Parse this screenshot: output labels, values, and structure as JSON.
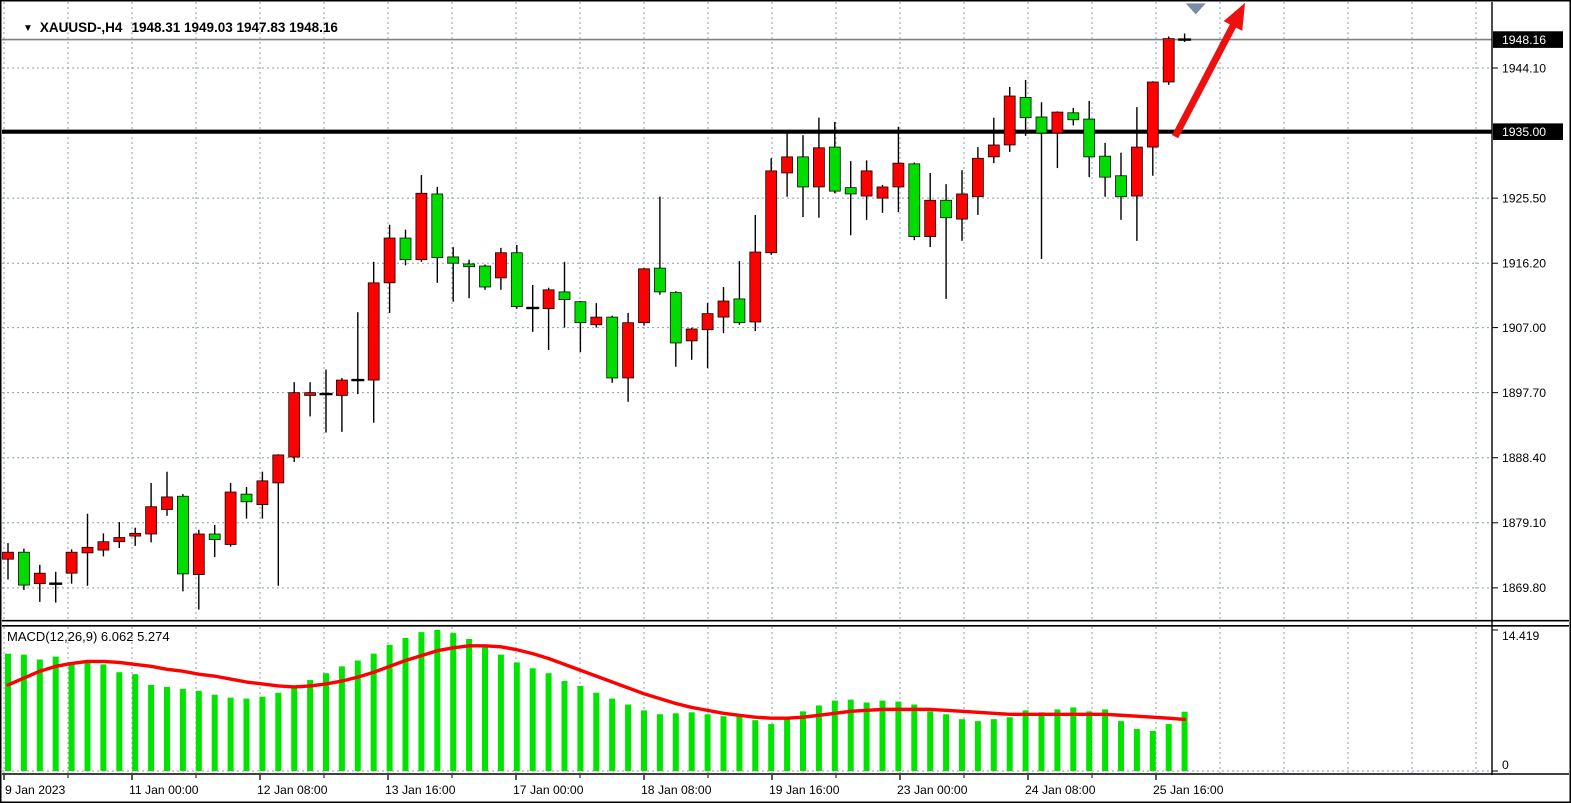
{
  "titlebar": {
    "dropdown_icon": "▼",
    "symbol_period": "XAUUSD-,H4",
    "ohlc": "1948.31 1949.03 1947.83 1948.16"
  },
  "colors": {
    "background": "#FFFFFF",
    "bull_body": "#FE0000",
    "bear_body": "#00DC00",
    "wick": "#000000",
    "grid": "#8B9BB0",
    "level_line": "#000000",
    "current_price_line": "#808080",
    "arrow": "#EE0F0F",
    "triangle_marker": "#7C8CA4",
    "macd_histogram": "#00E400",
    "macd_signal": "#FF0000",
    "tag_bg": "#000000",
    "tag_fg": "#FFFFFF",
    "border": "#000000"
  },
  "chart_data": {
    "type": "candlestick",
    "title": "XAUUSD-,H4",
    "symbol": "XAUUSD-",
    "timeframe": "H4",
    "ohlc_readout": {
      "open": 1948.31,
      "high": 1949.03,
      "low": 1947.83,
      "close": 1948.16
    },
    "price_axis": {
      "ticks": [
        1944.1,
        1925.5,
        1916.2,
        1907.0,
        1897.7,
        1888.4,
        1879.1,
        1869.8
      ],
      "current_price_tag": 1948.16,
      "level_tag": 1935.0
    },
    "x_axis": {
      "labels": [
        "9 Jan 2023",
        "11 Jan 00:00",
        "12 Jan 08:00",
        "13 Jan 16:00",
        "17 Jan 00:00",
        "18 Jan 08:00",
        "19 Jan 16:00",
        "23 Jan 00:00",
        "24 Jan 08:00",
        "25 Jan 16:00"
      ]
    },
    "overlays": {
      "horizontal_level": 1935.0,
      "current_price_line": 1948.16
    },
    "annotations": {
      "trend_arrow": {
        "type": "arrow-up-right",
        "from": {
          "bar": 73.4,
          "price": 1934.3
        },
        "to": {
          "bar": 77.8,
          "price": 1953.4
        }
      },
      "triangle_marker": {
        "type": "triangle-down",
        "bar": 74.7,
        "price": 1953.2
      }
    },
    "candles": [
      [
        1873.9,
        1876.2,
        1871.0,
        1874.9
      ],
      [
        1874.9,
        1875.4,
        1869.5,
        1870.2
      ],
      [
        1870.4,
        1873.1,
        1867.8,
        1871.9
      ],
      [
        1870.3,
        1872.1,
        1867.7,
        1870.4
      ],
      [
        1871.9,
        1875.3,
        1870.4,
        1874.9
      ],
      [
        1874.8,
        1880.4,
        1870.1,
        1875.6
      ],
      [
        1875.2,
        1877.6,
        1874.3,
        1876.4
      ],
      [
        1876.4,
        1879.2,
        1875.5,
        1877.0
      ],
      [
        1877.2,
        1878.4,
        1875.8,
        1877.6
      ],
      [
        1877.5,
        1884.8,
        1876.3,
        1881.4
      ],
      [
        1881.0,
        1886.4,
        1880.1,
        1882.8
      ],
      [
        1882.9,
        1883.2,
        1869.3,
        1871.8
      ],
      [
        1871.7,
        1878.1,
        1866.7,
        1877.5
      ],
      [
        1877.5,
        1878.8,
        1874.2,
        1876.7
      ],
      [
        1876.0,
        1884.8,
        1875.7,
        1883.5
      ],
      [
        1883.2,
        1884.2,
        1879.7,
        1882.1
      ],
      [
        1881.7,
        1886.4,
        1879.7,
        1885.1
      ],
      [
        1884.8,
        1888.9,
        1870.1,
        1888.8
      ],
      [
        1888.5,
        1899.2,
        1887.8,
        1897.7
      ],
      [
        1897.3,
        1899.2,
        1894.3,
        1897.7
      ],
      [
        1897.5,
        1901.0,
        1892.0,
        1897.5
      ],
      [
        1897.3,
        1899.8,
        1892.1,
        1899.5
      ],
      [
        1899.5,
        1909.2,
        1897.5,
        1899.5
      ],
      [
        1899.5,
        1916.4,
        1893.4,
        1913.4
      ],
      [
        1913.4,
        1921.7,
        1909.1,
        1919.8
      ],
      [
        1919.8,
        1921.0,
        1915.9,
        1916.7
      ],
      [
        1916.7,
        1928.8,
        1916.4,
        1926.2
      ],
      [
        1926.1,
        1927.1,
        1913.4,
        1917.0
      ],
      [
        1917.1,
        1918.5,
        1910.7,
        1916.2
      ],
      [
        1916.1,
        1916.7,
        1911.2,
        1915.7
      ],
      [
        1915.8,
        1916.0,
        1912.4,
        1912.8
      ],
      [
        1914.1,
        1918.4,
        1912.4,
        1917.7
      ],
      [
        1917.7,
        1918.8,
        1909.7,
        1910.0
      ],
      [
        1909.8,
        1913.1,
        1906.4,
        1909.8
      ],
      [
        1909.7,
        1912.7,
        1903.8,
        1912.4
      ],
      [
        1912.1,
        1916.4,
        1907.0,
        1911.0
      ],
      [
        1910.7,
        1910.8,
        1903.5,
        1907.7
      ],
      [
        1907.4,
        1910.5,
        1907.0,
        1908.5
      ],
      [
        1908.5,
        1908.7,
        1899.1,
        1899.8
      ],
      [
        1899.8,
        1909.1,
        1896.4,
        1907.7
      ],
      [
        1907.7,
        1915.5,
        1907.3,
        1915.4
      ],
      [
        1915.5,
        1925.7,
        1911.7,
        1912.1
      ],
      [
        1912.0,
        1912.2,
        1901.4,
        1904.8
      ],
      [
        1905.1,
        1907.0,
        1902.4,
        1906.8
      ],
      [
        1906.7,
        1910.5,
        1901.2,
        1909.0
      ],
      [
        1908.5,
        1912.8,
        1906.2,
        1910.8
      ],
      [
        1911.1,
        1916.5,
        1907.4,
        1907.7
      ],
      [
        1907.8,
        1923.1,
        1906.5,
        1917.8
      ],
      [
        1917.7,
        1931.2,
        1917.4,
        1929.4
      ],
      [
        1929.1,
        1935.0,
        1925.7,
        1931.4
      ],
      [
        1931.4,
        1934.5,
        1922.8,
        1927.1
      ],
      [
        1927.1,
        1937.0,
        1922.7,
        1932.7
      ],
      [
        1932.8,
        1936.4,
        1926.2,
        1926.5
      ],
      [
        1927.0,
        1930.8,
        1920.2,
        1926.1
      ],
      [
        1925.8,
        1930.9,
        1922.4,
        1929.4
      ],
      [
        1925.5,
        1927.4,
        1923.4,
        1927.1
      ],
      [
        1927.1,
        1935.7,
        1923.5,
        1930.5
      ],
      [
        1930.4,
        1930.6,
        1919.5,
        1920.0
      ],
      [
        1920.0,
        1929.1,
        1918.5,
        1925.2
      ],
      [
        1925.2,
        1927.5,
        1911.1,
        1922.7
      ],
      [
        1922.5,
        1929.5,
        1919.4,
        1926.1
      ],
      [
        1925.7,
        1932.8,
        1923.1,
        1931.2
      ],
      [
        1931.4,
        1937.0,
        1930.5,
        1933.1
      ],
      [
        1933.1,
        1941.4,
        1932.1,
        1940.1
      ],
      [
        1939.9,
        1942.4,
        1934.4,
        1937.0
      ],
      [
        1937.1,
        1939.2,
        1916.8,
        1934.8
      ],
      [
        1934.8,
        1937.9,
        1929.8,
        1937.8
      ],
      [
        1937.7,
        1938.4,
        1935.9,
        1936.7
      ],
      [
        1936.8,
        1939.4,
        1928.5,
        1931.4
      ],
      [
        1931.5,
        1933.4,
        1925.7,
        1928.5
      ],
      [
        1928.7,
        1932.0,
        1922.4,
        1925.7
      ],
      [
        1925.8,
        1938.5,
        1919.4,
        1932.8
      ],
      [
        1932.8,
        1942.2,
        1928.7,
        1942.1
      ],
      [
        1942.1,
        1948.6,
        1941.7,
        1948.3
      ],
      [
        1948.31,
        1949.03,
        1947.83,
        1948.16
      ]
    ],
    "indicator": {
      "type": "macd",
      "label": "MACD(12,26,9) 6.062 5.274",
      "params": [
        12,
        26,
        9
      ],
      "macd_value": 6.062,
      "signal_value": 5.274,
      "axis_max_label": "14.419",
      "axis_zero_label": "0",
      "axis_range": [
        0,
        14.419
      ],
      "histogram": [
        12.0,
        11.9,
        11.4,
        11.7,
        11.1,
        11.1,
        10.9,
        10.1,
        9.9,
        8.8,
        8.6,
        8.4,
        8.2,
        7.8,
        7.5,
        7.4,
        7.6,
        8.0,
        8.6,
        9.3,
        10.0,
        10.7,
        11.3,
        12.0,
        12.9,
        13.6,
        14.2,
        14.419,
        14.1,
        13.5,
        12.7,
        11.9,
        11.1,
        10.5,
        10.0,
        9.2,
        8.7,
        8.0,
        7.4,
        6.8,
        6.2,
        5.8,
        5.9,
        6.0,
        5.8,
        5.6,
        5.6,
        5.2,
        4.8,
        5.3,
        6.1,
        6.7,
        7.2,
        7.3,
        7.0,
        7.2,
        7.1,
        6.8,
        6.1,
        5.8,
        5.3,
        5.1,
        5.3,
        5.5,
        6.2,
        6.0,
        6.3,
        6.5,
        6.1,
        6.3,
        5.1,
        4.3,
        4.1,
        4.8,
        6.062
      ],
      "signal": [
        8.8,
        9.5,
        10.2,
        10.7,
        11.0,
        11.2,
        11.2,
        11.1,
        10.9,
        10.7,
        10.4,
        10.2,
        9.9,
        9.7,
        9.4,
        9.1,
        8.9,
        8.7,
        8.6,
        8.7,
        8.9,
        9.2,
        9.6,
        10.1,
        10.7,
        11.3,
        11.8,
        12.3,
        12.6,
        12.8,
        12.8,
        12.7,
        12.4,
        12.0,
        11.5,
        10.9,
        10.3,
        9.7,
        9.1,
        8.5,
        7.9,
        7.4,
        6.9,
        6.5,
        6.2,
        5.9,
        5.7,
        5.5,
        5.4,
        5.4,
        5.5,
        5.7,
        5.9,
        6.1,
        6.2,
        6.3,
        6.3,
        6.3,
        6.3,
        6.2,
        6.1,
        6.0,
        5.9,
        5.8,
        5.8,
        5.8,
        5.8,
        5.8,
        5.8,
        5.8,
        5.7,
        5.6,
        5.5,
        5.4,
        5.274
      ]
    }
  }
}
